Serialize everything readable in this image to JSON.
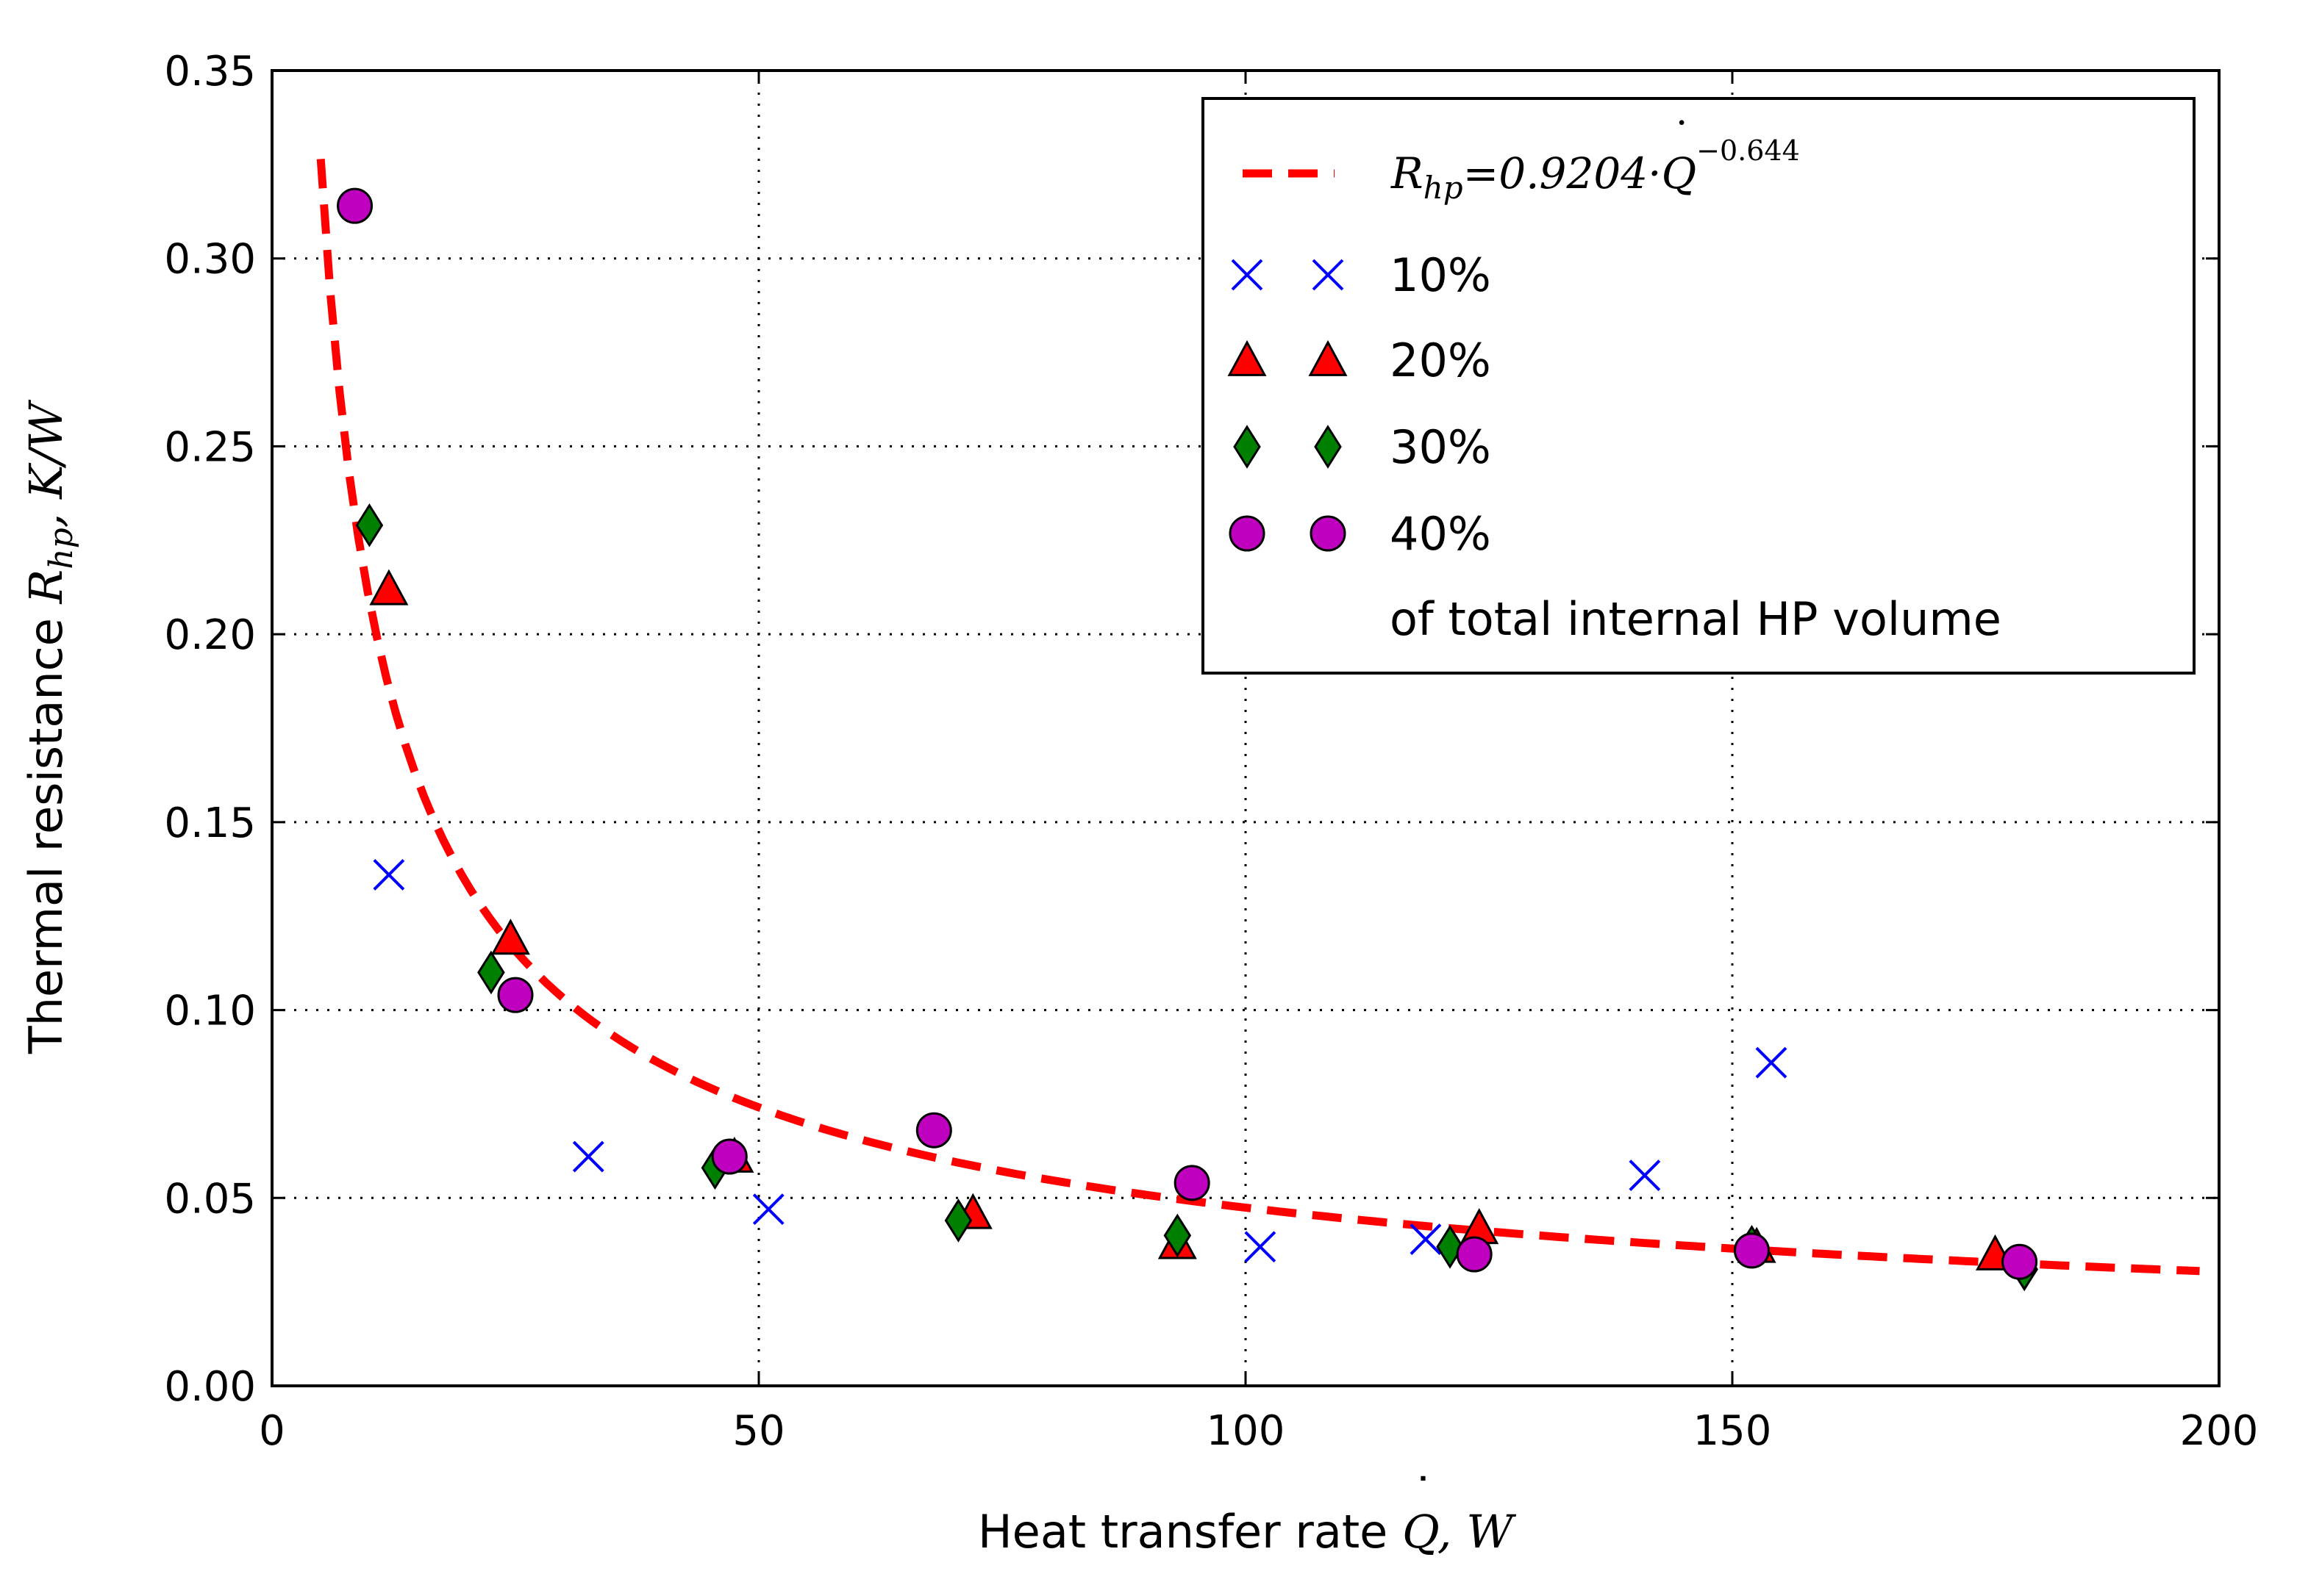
{
  "chart_data": {
    "type": "scatter",
    "title": "",
    "xlabel": {
      "text": "Heat transfer rate ",
      "symbol": "Q",
      "dot": "˙",
      "unit": ", W"
    },
    "ylabel": {
      "text": "Thermal resistance ",
      "symbol": "R",
      "subscript": "hp",
      "unit": ",  K/W"
    },
    "xlim": [
      0,
      200
    ],
    "ylim": [
      0,
      0.35
    ],
    "xticks": [
      "0",
      "50",
      "100",
      "150",
      "200"
    ],
    "xtick_values": [
      0,
      50,
      100,
      150,
      200
    ],
    "yticks": [
      "0.00",
      "0.05",
      "0.10",
      "0.15",
      "0.20",
      "0.25",
      "0.30",
      "0.35"
    ],
    "ytick_values": [
      0,
      0.05,
      0.1,
      0.15,
      0.2,
      0.25,
      0.3,
      0.35
    ],
    "grid": true,
    "legend_position": "top-right",
    "fit": {
      "label_lhs": "R",
      "label_sub": "hp",
      "label_rhs": "=0.9204·Q",
      "label_dot": "˙",
      "label_exp": "−0.644",
      "coefficient": 0.9204,
      "exponent": -0.644,
      "x_range": [
        5,
        198
      ],
      "color": "#ff0000",
      "style": "dashed"
    },
    "series": [
      {
        "name": "10%",
        "marker": "x",
        "color": "#0000ff",
        "x": [
          12,
          32.5,
          51,
          101.5,
          118.5,
          141,
          154
        ],
        "y": [
          0.136,
          0.061,
          0.047,
          0.037,
          0.039,
          0.056,
          0.086
        ]
      },
      {
        "name": "20%",
        "marker": "triangle",
        "color": "#ff0000",
        "x": [
          12,
          24.5,
          47.5,
          72,
          93,
          124,
          152.5,
          177
        ],
        "y": [
          0.212,
          0.119,
          0.061,
          0.046,
          0.038,
          0.042,
          0.037,
          0.035
        ]
      },
      {
        "name": "30%",
        "marker": "diamond",
        "color": "#008000",
        "x": [
          10,
          22.5,
          45.5,
          70.5,
          93,
          121,
          152,
          180
        ],
        "y": [
          0.229,
          0.11,
          0.058,
          0.044,
          0.04,
          0.037,
          0.037,
          0.031
        ]
      },
      {
        "name": "40%",
        "marker": "circle",
        "color": "#bf00bf",
        "x": [
          8.5,
          25,
          47,
          68,
          94.5,
          123.5,
          152,
          179.5
        ],
        "y": [
          0.314,
          0.104,
          0.061,
          0.068,
          0.054,
          0.035,
          0.036,
          0.033
        ]
      }
    ],
    "legend_note": "of total internal HP volume"
  }
}
